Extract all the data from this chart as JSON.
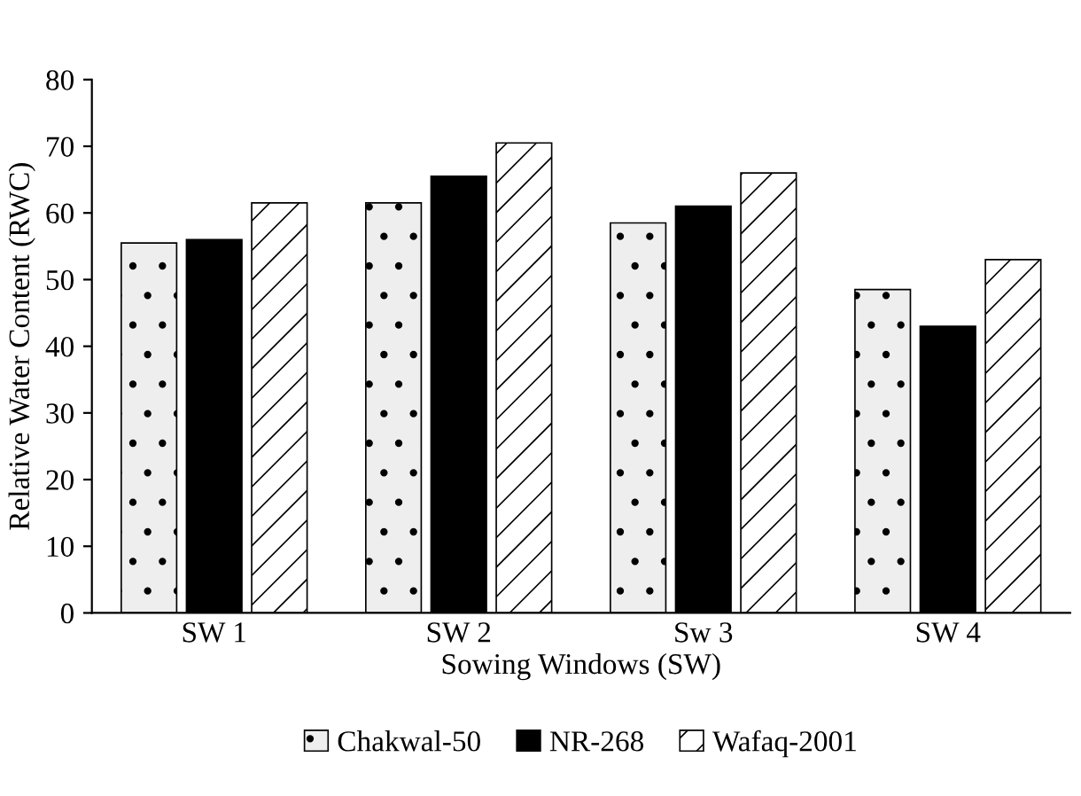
{
  "chart_data": {
    "type": "bar",
    "xlabel": "Sowing Windows (SW)",
    "ylabel": "Relative Water Content (RWC)",
    "categories": [
      "SW 1",
      "SW 2",
      "Sw 3",
      "SW 4"
    ],
    "series": [
      {
        "name": "Chakwal-50",
        "color": "#eeeeee",
        "values": [
          55.5,
          61.5,
          58.5,
          48.5
        ]
      },
      {
        "name": "NR-268",
        "color": "#000000",
        "values": [
          56,
          65.5,
          61,
          43
        ]
      },
      {
        "name": "Wafaq-2001",
        "color": "#ffffff",
        "values": [
          61.5,
          70.5,
          66,
          53
        ]
      }
    ],
    "ylim": [
      0,
      80
    ],
    "yticks": [
      0,
      10,
      20,
      30,
      40,
      50,
      60,
      70,
      80
    ],
    "grid": false,
    "legend": "bottom"
  }
}
